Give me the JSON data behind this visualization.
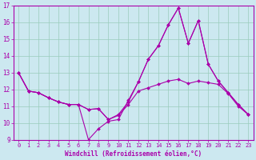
{
  "xlabel": "Windchill (Refroidissement éolien,°C)",
  "bg_color": "#cce8f0",
  "line_color": "#aa00aa",
  "xlim": [
    -0.5,
    23.5
  ],
  "ylim": [
    9,
    17
  ],
  "yticks": [
    9,
    10,
    11,
    12,
    13,
    14,
    15,
    16,
    17
  ],
  "xticks": [
    0,
    1,
    2,
    3,
    4,
    5,
    6,
    7,
    8,
    9,
    10,
    11,
    12,
    13,
    14,
    15,
    16,
    17,
    18,
    19,
    20,
    21,
    22,
    23
  ],
  "line1_x": [
    0,
    1,
    2,
    3,
    4,
    5,
    6,
    7,
    8,
    9,
    10,
    11,
    12,
    13,
    14,
    15,
    16,
    17,
    18,
    19,
    20,
    21,
    22,
    23
  ],
  "line1_y": [
    13.0,
    11.9,
    11.8,
    11.5,
    11.25,
    11.1,
    11.1,
    10.8,
    10.85,
    10.2,
    10.5,
    11.25,
    12.45,
    13.8,
    14.6,
    15.85,
    16.85,
    14.75,
    16.1,
    13.5,
    12.5,
    11.8,
    11.1,
    10.5
  ],
  "line2_x": [
    0,
    1,
    2,
    3,
    4,
    5,
    6,
    7,
    8,
    9,
    10,
    11,
    12,
    13,
    14,
    15,
    16,
    17,
    18,
    19,
    20,
    21,
    22,
    23
  ],
  "line2_y": [
    13.0,
    11.9,
    11.8,
    11.5,
    11.25,
    11.1,
    11.1,
    9.0,
    9.65,
    10.1,
    10.2,
    11.35,
    12.45,
    13.8,
    14.6,
    15.85,
    16.85,
    14.75,
    16.1,
    13.5,
    12.5,
    11.8,
    11.1,
    10.5
  ],
  "line3_x": [
    0,
    1,
    2,
    3,
    4,
    5,
    6,
    7,
    8,
    9,
    10,
    11,
    12,
    13,
    14,
    15,
    16,
    17,
    18,
    19,
    20,
    21,
    22,
    23
  ],
  "line3_y": [
    13.0,
    11.9,
    11.8,
    11.5,
    11.25,
    11.1,
    11.1,
    10.8,
    10.85,
    10.2,
    10.45,
    11.1,
    11.9,
    12.1,
    12.3,
    12.5,
    12.6,
    12.35,
    12.5,
    12.4,
    12.3,
    11.75,
    11.0,
    10.5
  ],
  "grid_color": "#99ccbb",
  "marker": "D",
  "markersize": 2.0,
  "linewidth": 0.8,
  "tick_fontsize": 5.0,
  "xlabel_fontsize": 5.5
}
